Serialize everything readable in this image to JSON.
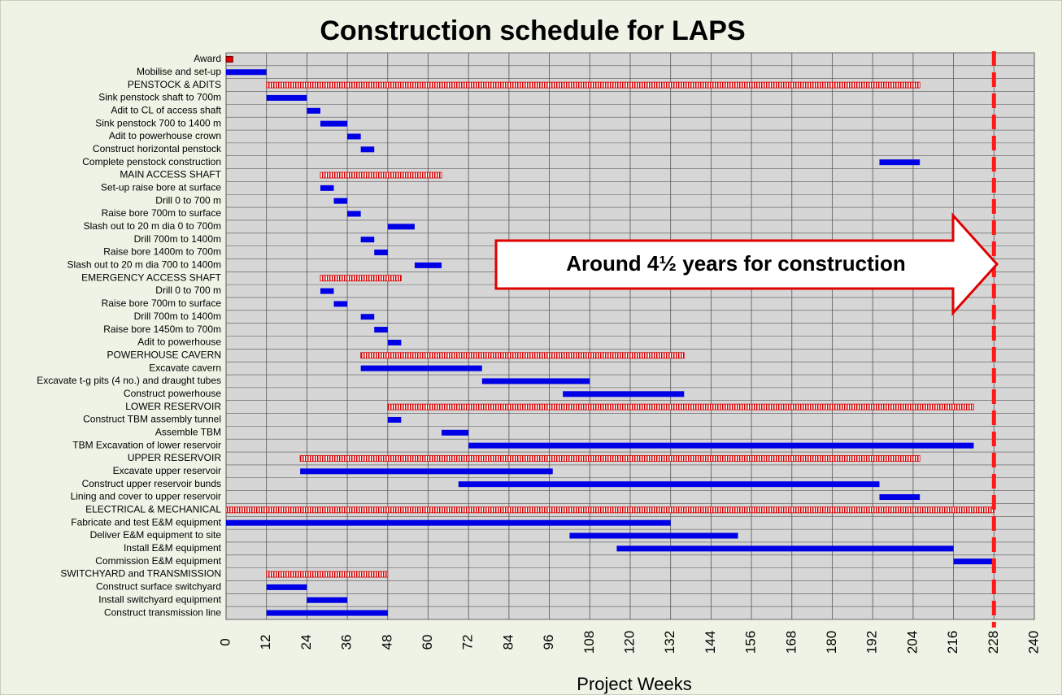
{
  "chart_data": {
    "type": "gantt",
    "title": "Construction schedule for LAPS",
    "x_label": "Project Weeks",
    "annotation": "Around 4½ years for construction",
    "categories": [
      "Award",
      "Mobilise and set-up",
      "PENSTOCK & ADITS",
      "Sink penstock shaft to 700m",
      "Adit to CL of access shaft",
      "Sink penstock 700 to 1400 m",
      "Adit to powerhouse crown",
      "Construct horizontal penstock",
      "Complete penstock construction",
      "MAIN ACCESS SHAFT",
      "Set-up raise bore at surface",
      "Drill 0 to 700 m",
      "Raise bore 700m to surface",
      "Slash out to 20 m dia 0 to 700m",
      "Drill 700m to 1400m",
      "Raise bore 1400m to 700m",
      "Slash out to 20 m dia 700 to 1400m",
      "EMERGENCY ACCESS SHAFT",
      "Drill 0 to 700 m",
      "Raise bore 700m to surface",
      "Drill 700m to 1400m",
      "Raise bore 1450m to 700m",
      "Adit to powerhouse",
      "POWERHOUSE CAVERN",
      "Excavate cavern",
      "Excavate t-g pits (4 no.) and draught tubes",
      "Construct powerhouse",
      "LOWER RESERVOIR",
      "Construct TBM assembly tunnel",
      "Assemble TBM",
      "TBM Excavation of lower reservoir",
      "UPPER RESERVOIR",
      "Excavate upper reservoir",
      "Construct upper reservoir bunds",
      "Lining and cover to upper reservoir",
      "ELECTRICAL & MECHANICAL",
      "Fabricate and test E&M equipment",
      "Deliver E&M equipment to site",
      "Install E&M equipment",
      "Commission E&M equipment",
      "SWITCHYARD and TRANSMISSION",
      "Construct surface switchyard",
      "Install switchyard equipment",
      "Construct transmission line"
    ],
    "starts": [
      0,
      0,
      12,
      12,
      24,
      28,
      36,
      40,
      194,
      28,
      28,
      32,
      36,
      48,
      40,
      44,
      56,
      28,
      28,
      32,
      40,
      44,
      48,
      40,
      40,
      76,
      100,
      48,
      48,
      64,
      72,
      22,
      22,
      69,
      194,
      0,
      0,
      102,
      116,
      216,
      12,
      12,
      24,
      12
    ],
    "ends": [
      2,
      12,
      206,
      24,
      28,
      36,
      40,
      44,
      206,
      64,
      32,
      36,
      40,
      56,
      44,
      48,
      64,
      52,
      32,
      36,
      44,
      48,
      52,
      136,
      76,
      108,
      136,
      222,
      52,
      72,
      222,
      206,
      97,
      194,
      206,
      228,
      132,
      152,
      216,
      228,
      48,
      24,
      36,
      48
    ],
    "kinds": [
      "milestone",
      "task",
      "summary",
      "task",
      "task",
      "task",
      "task",
      "task",
      "task",
      "summary",
      "task",
      "task",
      "task",
      "task",
      "task",
      "task",
      "task",
      "summary",
      "task",
      "task",
      "task",
      "task",
      "task",
      "summary",
      "task",
      "task",
      "task",
      "summary",
      "task",
      "task",
      "task",
      "summary",
      "task",
      "task",
      "task",
      "summary",
      "task",
      "task",
      "task",
      "task",
      "summary",
      "task",
      "task",
      "task"
    ],
    "colors": {
      "task": "#0000e6",
      "summary": "#d40000",
      "milestone": "#e00000"
    },
    "deadline": 228,
    "deadline_color": "#ff1a1a",
    "xlim": [
      0,
      240
    ],
    "xticks": [
      0,
      12,
      24,
      36,
      48,
      60,
      72,
      84,
      96,
      108,
      120,
      132,
      144,
      156,
      168,
      180,
      192,
      204,
      216,
      228,
      240
    ],
    "grid": true
  }
}
